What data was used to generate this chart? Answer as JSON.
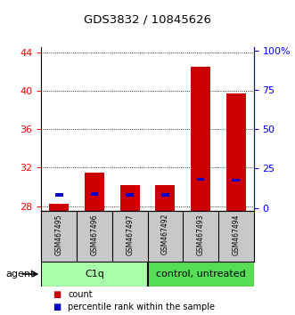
{
  "title": "GDS3832 / 10845626",
  "samples": [
    "GSM467495",
    "GSM467496",
    "GSM467497",
    "GSM467492",
    "GSM467493",
    "GSM467494"
  ],
  "red_values": [
    28.3,
    31.5,
    30.2,
    30.2,
    42.5,
    39.7
  ],
  "blue_values": [
    29.2,
    29.3,
    29.2,
    29.2,
    30.8,
    30.7
  ],
  "red_base": 27.5,
  "ylim_left": [
    27.5,
    44.5
  ],
  "ylim_right": [
    -2,
    102
  ],
  "yticks_left": [
    28,
    32,
    36,
    40,
    44
  ],
  "yticks_right": [
    0,
    25,
    50,
    75,
    100
  ],
  "ytick_labels_right": [
    "0",
    "25",
    "50",
    "75",
    "100%"
  ],
  "bar_width": 0.55,
  "red_color": "#CC0000",
  "blue_color": "#0000CC",
  "background_plot": "#FFFFFF",
  "background_samples": "#C8C8C8",
  "group1_color": "#AAFFAA",
  "group2_color": "#55DD55",
  "group1_label": "C1q",
  "group2_label": "control, untreated",
  "agent_label": "agent",
  "legend_count": "count",
  "legend_pct": "percentile rank within the sample"
}
